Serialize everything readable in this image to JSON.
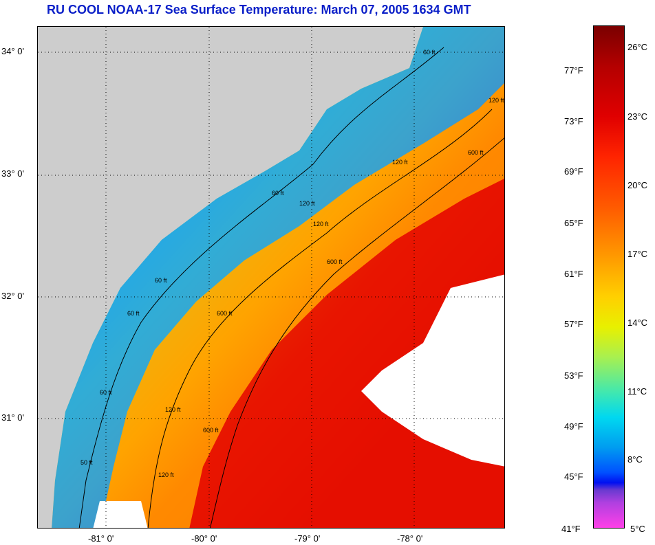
{
  "title": "RU COOL  NOAA-17  Sea Surface Temperature:  March 07, 2005 1634 GMT",
  "map": {
    "latitude_labels": [
      "34° 0'",
      "33° 0'",
      "32° 0'",
      "31° 0'"
    ],
    "longitude_labels": [
      "-81° 0'",
      "-80° 0'",
      "-79° 0'",
      "-78° 0'"
    ],
    "contour_labels": [
      "60 ft",
      "120 ft",
      "600 ft",
      "60 ft",
      "120 ft",
      "600 ft",
      "60 ft",
      "120 ft",
      "600 ft",
      "60 ft",
      "120 ft",
      "600 ft",
      "50 ft",
      "120 ft",
      "60 ft",
      "120 ft"
    ],
    "colors": {
      "land": "#cdcdcd",
      "cloud": "#ffffff",
      "title": "#0a1fc8"
    }
  },
  "colorbar": {
    "fahrenheit_labels": [
      "77°F",
      "73°F",
      "69°F",
      "65°F",
      "61°F",
      "57°F",
      "53°F",
      "49°F",
      "45°F",
      "41°F"
    ],
    "celsius_labels": [
      "26°C",
      "23°C",
      "20°C",
      "17°C",
      "14°C",
      "11°C",
      "8°C",
      "5°C"
    ],
    "range_fahrenheit": [
      41,
      80
    ],
    "range_celsius": [
      5,
      27
    ]
  }
}
